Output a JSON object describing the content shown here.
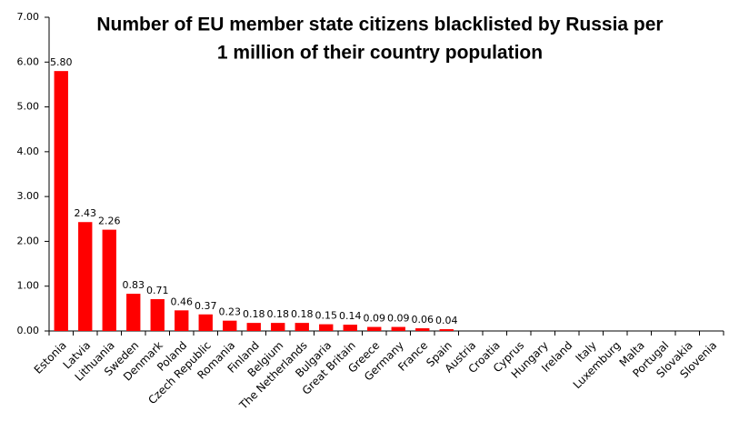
{
  "chart_data": {
    "type": "bar",
    "title": [
      "Number of EU member state citizens blacklisted by Russia per",
      "1 million of their country population"
    ],
    "categories": [
      "Estonia",
      "Latvia",
      "Lithuania",
      "Sweden",
      "Denmark",
      "Poland",
      "Czech Republic",
      "Romania",
      "Finland",
      "Belgium",
      "The Netherlands",
      "Bulgaria",
      "Great Britain",
      "Greece",
      "Germany",
      "France",
      "Spain",
      "Austria",
      "Croatia",
      "Cyprus",
      "Hungary",
      "Ireland",
      "Italy",
      "Luxemburg",
      "Malta",
      "Portugal",
      "Slovakia",
      "Slovenia"
    ],
    "values": [
      5.8,
      2.43,
      2.26,
      0.83,
      0.71,
      0.46,
      0.37,
      0.23,
      0.18,
      0.18,
      0.18,
      0.15,
      0.14,
      0.09,
      0.09,
      0.06,
      0.04,
      0,
      0,
      0,
      0,
      0,
      0,
      0,
      0,
      0,
      0,
      0
    ],
    "value_labels": [
      "5.80",
      "2.43",
      "2.26",
      "0.83",
      "0.71",
      "0.46",
      "0.37",
      "0.23",
      "0.18",
      "0.18",
      "0.18",
      "0.15",
      "0.14",
      "0.09",
      "0.09",
      "0.06",
      "0.04",
      null,
      null,
      null,
      null,
      null,
      null,
      null,
      null,
      null,
      null,
      null
    ],
    "color": "#ff0000",
    "ylim": [
      0,
      7
    ],
    "yticks": [
      {
        "value": 0,
        "label": "0.00"
      },
      {
        "value": 1,
        "label": "1.00"
      },
      {
        "value": 2,
        "label": "2.00"
      },
      {
        "value": 3,
        "label": "3.00"
      },
      {
        "value": 4,
        "label": "4.00"
      },
      {
        "value": 5,
        "label": "5.00"
      },
      {
        "value": 6,
        "label": "6.00"
      },
      {
        "value": 7,
        "label": "7.00"
      }
    ],
    "grid": false
  }
}
